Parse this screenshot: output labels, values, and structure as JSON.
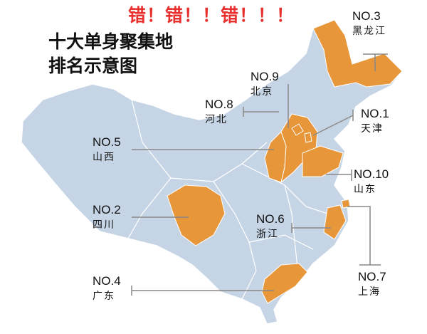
{
  "warning": "错！错！！错！！！",
  "title": {
    "line1": "十大单身聚集地",
    "line2": "排名示意图"
  },
  "colors": {
    "highlight": "#e8963a",
    "map": "#c6d5e5",
    "warning": "#e8302f",
    "leader": "#888888"
  },
  "rankings": [
    {
      "rank": "NO.1",
      "province": "天津"
    },
    {
      "rank": "NO.2",
      "province": "四川"
    },
    {
      "rank": "NO.3",
      "province": "黑龙江"
    },
    {
      "rank": "NO.4",
      "province": "广东"
    },
    {
      "rank": "NO.5",
      "province": "山西"
    },
    {
      "rank": "NO.6",
      "province": "浙江"
    },
    {
      "rank": "NO.7",
      "province": "上海"
    },
    {
      "rank": "NO.8",
      "province": "河北"
    },
    {
      "rank": "NO.9",
      "province": "北京"
    },
    {
      "rank": "NO.10",
      "province": "山东"
    }
  ]
}
